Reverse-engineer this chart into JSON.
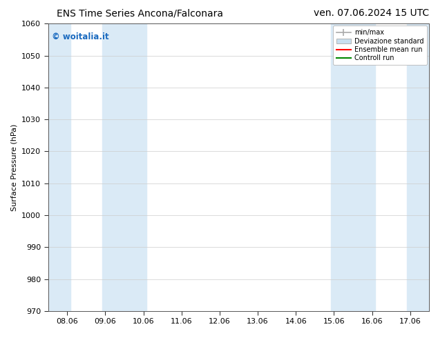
{
  "title_left": "ENS Time Series Ancona/Falconara",
  "title_right": "ven. 07.06.2024 15 UTC",
  "ylabel": "Surface Pressure (hPa)",
  "ylim": [
    970,
    1060
  ],
  "yticks": [
    970,
    980,
    990,
    1000,
    1010,
    1020,
    1030,
    1040,
    1050,
    1060
  ],
  "xtick_labels": [
    "08.06",
    "09.06",
    "10.06",
    "11.06",
    "12.06",
    "13.06",
    "14.06",
    "15.06",
    "16.06",
    "17.06"
  ],
  "xtick_positions": [
    0,
    1,
    2,
    3,
    4,
    5,
    6,
    7,
    8,
    9
  ],
  "xlim": [
    -0.5,
    9.5
  ],
  "shaded_bands": [
    {
      "xmin": -0.5,
      "xmax": 0.08,
      "color": "#daeaf6"
    },
    {
      "xmin": 0.92,
      "xmax": 2.08,
      "color": "#daeaf6"
    },
    {
      "xmin": 6.92,
      "xmax": 8.08,
      "color": "#daeaf6"
    },
    {
      "xmin": 8.92,
      "xmax": 9.5,
      "color": "#daeaf6"
    }
  ],
  "legend_entries": [
    {
      "label": "min/max",
      "style": "minmax"
    },
    {
      "label": "Deviazione standard",
      "style": "std"
    },
    {
      "label": "Ensemble mean run",
      "color": "#ff0000",
      "style": "line"
    },
    {
      "label": "Controll run",
      "color": "#008800",
      "style": "line"
    }
  ],
  "watermark_text": "© woitalia.it",
  "watermark_color": "#1a6abf",
  "background_color": "#ffffff",
  "plot_bg_color": "#ffffff",
  "grid_color": "#cccccc",
  "title_fontsize": 10,
  "axis_fontsize": 8,
  "tick_fontsize": 8,
  "legend_fontsize": 7
}
